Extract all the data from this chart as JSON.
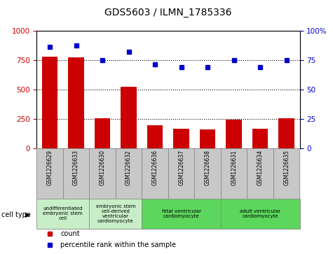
{
  "title": "GDS5603 / ILMN_1785336",
  "samples": [
    "GSM1226629",
    "GSM1226633",
    "GSM1226630",
    "GSM1226632",
    "GSM1226636",
    "GSM1226637",
    "GSM1226638",
    "GSM1226631",
    "GSM1226634",
    "GSM1226635"
  ],
  "counts": [
    775,
    770,
    255,
    520,
    195,
    165,
    158,
    240,
    162,
    252
  ],
  "percentiles": [
    86,
    87,
    75,
    82,
    71,
    69,
    69,
    75,
    69,
    75
  ],
  "ylim_left": [
    0,
    1000
  ],
  "ylim_right": [
    0,
    100
  ],
  "yticks_left": [
    0,
    250,
    500,
    750,
    1000
  ],
  "yticks_right": [
    0,
    25,
    50,
    75,
    100
  ],
  "ytick_right_labels": [
    "0",
    "25",
    "50",
    "75",
    "100%"
  ],
  "cell_types": [
    {
      "label": "undifferentiated\nembryonic stem\ncell",
      "span": [
        0,
        2
      ],
      "color": "#c8eec8"
    },
    {
      "label": "embryonic stem\ncell-derived\nventricular\ncardiomyocyte",
      "span": [
        2,
        4
      ],
      "color": "#c8eec8"
    },
    {
      "label": "fetal ventricular\ncardiomyocyte",
      "span": [
        4,
        7
      ],
      "color": "#5cd65c"
    },
    {
      "label": "adult ventricular\ncardiomyocyte",
      "span": [
        7,
        10
      ],
      "color": "#5cd65c"
    }
  ],
  "bar_color": "#cc0000",
  "dot_color": "#0000cc",
  "bg_color": "#ffffff",
  "tick_label_color_left": "#cc0000",
  "tick_label_color_right": "#0000cc",
  "grid_color": "#000000",
  "sample_bg_color": "#c8c8c8",
  "legend_count_color": "#cc0000",
  "legend_pct_color": "#0000cc",
  "gridlines_at": [
    250,
    500,
    750
  ]
}
